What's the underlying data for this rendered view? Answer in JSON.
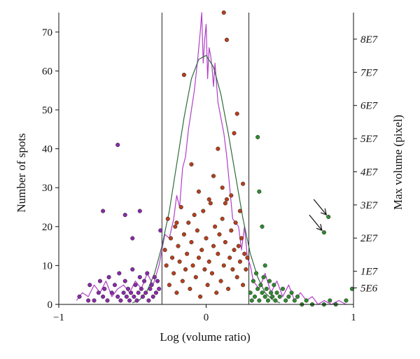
{
  "chart_data": {
    "type": "scatter",
    "title": "",
    "xlabel": "Log (volume ratio)",
    "ylabel": "Number of spots",
    "y2label": "Max volume (pixel)",
    "xlim": [
      -1,
      1
    ],
    "ylim": [
      0,
      75
    ],
    "y2lim": [
      0,
      88000000
    ],
    "x_ticks": [
      "−1",
      "0",
      "1"
    ],
    "y_ticks": [
      "0",
      "10",
      "20",
      "30",
      "40",
      "50",
      "60",
      "70"
    ],
    "y2_ticks": [
      "5E6",
      "1E7",
      "2E7",
      "3E7",
      "4E7",
      "5E7",
      "6E7",
      "7E7",
      "8E7"
    ],
    "y2_tick_values": [
      5000000,
      10000000,
      20000000,
      30000000,
      40000000,
      50000000,
      60000000,
      70000000,
      80000000
    ],
    "threshold_lines": [
      -0.3,
      0.29
    ],
    "colors": {
      "histogram": "#b13ec8",
      "gaussian_fit": "#2f6b3c",
      "purple_points": "#8a2aa8",
      "brown_points": "#b5401c",
      "green_points": "#2f8a2f",
      "threshold": "#222222"
    },
    "series": [
      {
        "type": "line",
        "x": [
          -0.88,
          -0.84,
          -0.8,
          -0.76,
          -0.72,
          -0.68,
          -0.64,
          -0.6,
          -0.56,
          -0.52,
          -0.48,
          -0.44,
          -0.4,
          -0.36,
          -0.32,
          -0.28,
          -0.25,
          -0.22,
          -0.2,
          -0.18,
          -0.16,
          -0.14,
          -0.12,
          -0.1,
          -0.08,
          -0.06,
          -0.04,
          -0.03,
          -0.02,
          -0.01,
          0.0,
          0.01,
          0.02,
          0.03,
          0.04,
          0.05,
          0.06,
          0.08,
          0.1,
          0.12,
          0.14,
          0.16,
          0.18,
          0.2,
          0.22,
          0.24,
          0.26,
          0.28,
          0.3,
          0.32,
          0.36,
          0.4,
          0.44,
          0.48,
          0.52,
          0.56,
          0.6,
          0.64,
          0.68,
          0.72,
          0.76,
          0.8,
          0.85,
          0.9,
          0.95
        ],
        "values": [
          1,
          3,
          2,
          5,
          3,
          6,
          2,
          4,
          5,
          3,
          6,
          4,
          8,
          5,
          10,
          18,
          17,
          22,
          28,
          25,
          35,
          38,
          45,
          50,
          55,
          62,
          70,
          75,
          62,
          68,
          72,
          58,
          66,
          64,
          61,
          56,
          62,
          52,
          48,
          44,
          38,
          30,
          22,
          21,
          20,
          14,
          20,
          12,
          10,
          6,
          4,
          8,
          3,
          6,
          2,
          5,
          1,
          3,
          1,
          2,
          0,
          1,
          0,
          1,
          0
        ]
      },
      {
        "type": "line",
        "x": [
          -0.5,
          -0.45,
          -0.4,
          -0.35,
          -0.3,
          -0.25,
          -0.2,
          -0.15,
          -0.1,
          -0.05,
          0.0,
          0.05,
          0.1,
          0.15,
          0.2,
          0.25,
          0.3,
          0.35,
          0.4,
          0.45,
          0.5
        ],
        "values": [
          0.4,
          1.2,
          3.5,
          8,
          15,
          24,
          36,
          48,
          58,
          63,
          64,
          61,
          54,
          44,
          33,
          22,
          13,
          7,
          3,
          1.2,
          0.4
        ]
      },
      {
        "type": "scatter",
        "x": [
          -0.86,
          -0.8,
          -0.79,
          -0.76,
          -0.73,
          -0.72,
          -0.7,
          -0.69,
          -0.67,
          -0.66,
          -0.64,
          -0.62,
          -0.6,
          -0.59,
          -0.58,
          -0.56,
          -0.55,
          -0.54,
          -0.53,
          -0.52,
          -0.51,
          -0.5,
          -0.49,
          -0.48,
          -0.47,
          -0.46,
          -0.45,
          -0.44,
          -0.43,
          -0.42,
          -0.41,
          -0.4,
          -0.39,
          -0.38,
          -0.37,
          -0.36,
          -0.35,
          -0.34,
          -0.33,
          -0.32,
          -0.31,
          -0.5,
          -0.45,
          -0.6,
          -0.7,
          -0.55
        ],
        "values": [
          2,
          1,
          5,
          1,
          3,
          6,
          2,
          4,
          1,
          7,
          3,
          5,
          2,
          8,
          1,
          3,
          6,
          2,
          4,
          1,
          3,
          9,
          2,
          5,
          1,
          3,
          7,
          4,
          2,
          6,
          3,
          8,
          1,
          4,
          5,
          2,
          7,
          3,
          6,
          4,
          19,
          17,
          24,
          41,
          24,
          23
        ]
      },
      {
        "type": "scatter",
        "x": [
          -0.28,
          -0.27,
          -0.26,
          -0.25,
          -0.24,
          -0.23,
          -0.22,
          -0.21,
          -0.2,
          -0.19,
          -0.18,
          -0.17,
          -0.16,
          -0.15,
          -0.14,
          -0.13,
          -0.12,
          -0.11,
          -0.1,
          -0.09,
          -0.08,
          -0.07,
          -0.06,
          -0.05,
          -0.04,
          -0.03,
          -0.02,
          -0.01,
          0.0,
          0.01,
          0.02,
          0.03,
          0.04,
          0.05,
          0.06,
          0.07,
          0.08,
          0.09,
          0.1,
          0.11,
          0.12,
          0.13,
          0.14,
          0.15,
          0.16,
          0.17,
          0.18,
          0.19,
          0.2,
          0.21,
          0.22,
          0.23,
          0.24,
          0.25,
          0.26,
          0.27,
          0.28,
          0.12,
          0.14,
          -0.15,
          0.21,
          0.19,
          0.08,
          -0.1,
          0.05,
          0.25,
          0.11,
          -0.05,
          0.17,
          0.02,
          0.23,
          -0.2,
          0.13
        ],
        "values": [
          14,
          10,
          22,
          5,
          17,
          12,
          8,
          20,
          3,
          15,
          11,
          25,
          6,
          18,
          9,
          13,
          21,
          4,
          16,
          10,
          23,
          7,
          19,
          12,
          2,
          14,
          24,
          9,
          17,
          5,
          11,
          26,
          8,
          15,
          20,
          3,
          13,
          18,
          6,
          22,
          10,
          16,
          27,
          4,
          12,
          19,
          9,
          14,
          21,
          7,
          15,
          11,
          17,
          5,
          13,
          9,
          12,
          75,
          68,
          59,
          49,
          44,
          40,
          36,
          33,
          31,
          30,
          29,
          28,
          27,
          24,
          21,
          26
        ]
      },
      {
        "type": "scatter",
        "x": [
          0.3,
          0.31,
          0.32,
          0.33,
          0.34,
          0.35,
          0.36,
          0.37,
          0.38,
          0.39,
          0.4,
          0.41,
          0.42,
          0.43,
          0.44,
          0.45,
          0.46,
          0.47,
          0.48,
          0.5,
          0.52,
          0.54,
          0.56,
          0.58,
          0.6,
          0.62,
          0.65,
          0.68,
          0.72,
          0.8,
          0.84,
          0.88,
          0.95,
          0.99,
          0.35,
          0.36,
          0.38,
          0.4
        ],
        "values": [
          3,
          1,
          6,
          2,
          8,
          4,
          1,
          5,
          3,
          7,
          2,
          4,
          1,
          6,
          3,
          2,
          5,
          1,
          3,
          2,
          4,
          1,
          2,
          3,
          1,
          2,
          0,
          1,
          0,
          0,
          1,
          0,
          1,
          4,
          43,
          29,
          20,
          10
        ]
      },
      {
        "type": "scatter",
        "x": [
          0.8,
          0.83
        ],
        "values": [
          18.5,
          22.5
        ]
      }
    ],
    "annotations": [
      "arrow",
      "arrow"
    ]
  }
}
